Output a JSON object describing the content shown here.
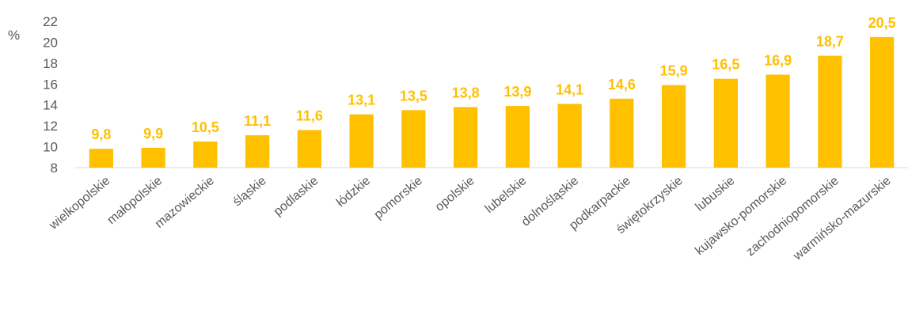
{
  "chart_data": {
    "type": "bar",
    "ylabel": "%",
    "categories": [
      "wielkopolskie",
      "małopolskie",
      "mazowieckie",
      "śląskie",
      "podlaskie",
      "łódzkie",
      "pomorskie",
      "opolskie",
      "lubelskie",
      "dolnośląskie",
      "podkarpackie",
      "świętokrzyskie",
      "lubuskie",
      "kujawsko-pomorskie",
      "zachodniopomorskie",
      "warmińsko-mazurskie"
    ],
    "values": [
      9.8,
      9.9,
      10.5,
      11.1,
      11.6,
      13.1,
      13.5,
      13.8,
      13.9,
      14.1,
      14.6,
      15.9,
      16.5,
      16.9,
      18.7,
      20.5
    ],
    "value_labels": [
      "9,8",
      "9,9",
      "10,5",
      "11,1",
      "11,6",
      "13,1",
      "13,5",
      "13,8",
      "13,9",
      "14,1",
      "14,6",
      "15,9",
      "16,5",
      "16,9",
      "18,7",
      "20,5"
    ],
    "yticks": [
      8,
      10,
      12,
      14,
      16,
      18,
      20,
      22
    ],
    "ylim": [
      8,
      22
    ],
    "grid": false,
    "legend": "none",
    "bar_color": "#FFC000",
    "label_color": "#FFC000"
  }
}
